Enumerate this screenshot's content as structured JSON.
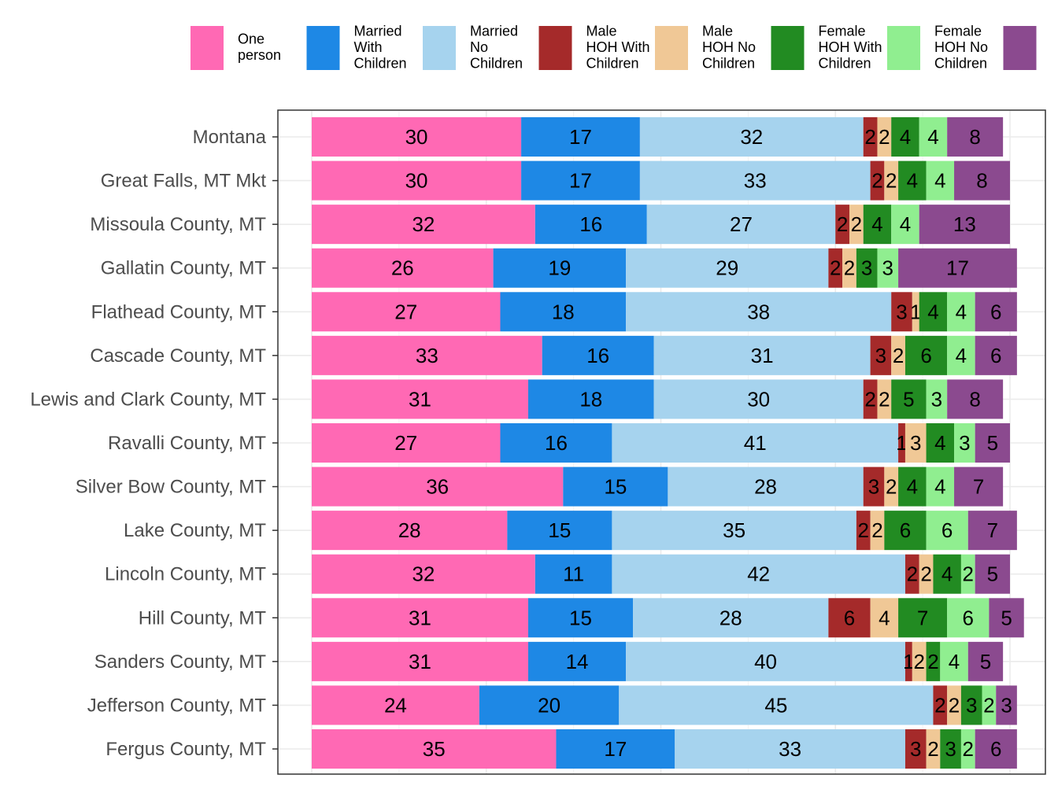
{
  "chart_data": {
    "type": "bar",
    "orientation": "horizontal",
    "stacked": true,
    "percent": true,
    "grid": true,
    "legend_position": "top",
    "title": "",
    "xlabel": "",
    "ylabel": "",
    "xlim": [
      0,
      100
    ],
    "categories": [
      "Montana",
      "Great Falls, MT Mkt",
      "Missoula County, MT",
      "Gallatin County, MT",
      "Flathead County, MT",
      "Cascade County, MT",
      "Lewis and Clark County, MT",
      "Ravalli County, MT",
      "Silver Bow County, MT",
      "Lake County, MT",
      "Lincoln County, MT",
      "Hill County, MT",
      "Sanders County, MT",
      "Jefferson County, MT",
      "Fergus County, MT"
    ],
    "series": [
      {
        "name": "One person",
        "legend_lines": [
          "One",
          "person"
        ],
        "color": "#ff69b4",
        "values": [
          30,
          30,
          32,
          26,
          27,
          33,
          31,
          27,
          36,
          28,
          32,
          31,
          31,
          24,
          35
        ]
      },
      {
        "name": "Married With Children",
        "legend_lines": [
          "Married",
          "With",
          "Children"
        ],
        "color": "#1e88e5",
        "values": [
          17,
          17,
          16,
          19,
          18,
          16,
          18,
          16,
          15,
          15,
          11,
          15,
          14,
          20,
          17
        ]
      },
      {
        "name": "Married No Children",
        "legend_lines": [
          "Married",
          "No",
          "Children"
        ],
        "color": "#a6d3ee",
        "values": [
          32,
          33,
          27,
          29,
          38,
          31,
          30,
          41,
          28,
          35,
          42,
          28,
          40,
          45,
          33
        ]
      },
      {
        "name": "Male HOH With Children",
        "legend_lines": [
          "Male",
          "HOH With",
          "Children"
        ],
        "color": "#a52a2a",
        "values": [
          2,
          2,
          2,
          2,
          3,
          3,
          2,
          1,
          3,
          2,
          2,
          6,
          1,
          2,
          3
        ]
      },
      {
        "name": "Male HOH No Children",
        "legend_lines": [
          "Male",
          "HOH No",
          "Children"
        ],
        "color": "#f0c896",
        "values": [
          2,
          2,
          2,
          2,
          1,
          2,
          2,
          3,
          2,
          2,
          2,
          4,
          2,
          2,
          2
        ]
      },
      {
        "name": "Female HOH With Children",
        "legend_lines": [
          "Female",
          "HOH With",
          "Children"
        ],
        "color": "#228b22",
        "values": [
          4,
          4,
          4,
          3,
          4,
          6,
          5,
          4,
          4,
          6,
          4,
          7,
          2,
          3,
          3
        ]
      },
      {
        "name": "Female HOH No Children",
        "legend_lines": [
          "Female",
          "HOH No",
          "Children"
        ],
        "color": "#90ee90",
        "values": [
          4,
          4,
          4,
          3,
          4,
          4,
          3,
          3,
          4,
          6,
          2,
          6,
          4,
          2,
          2
        ]
      },
      {
        "name": "",
        "legend_lines": [],
        "color": "#8b4a8f",
        "values": [
          8,
          8,
          13,
          17,
          6,
          6,
          8,
          5,
          7,
          7,
          5,
          5,
          5,
          3,
          6
        ]
      }
    ]
  }
}
